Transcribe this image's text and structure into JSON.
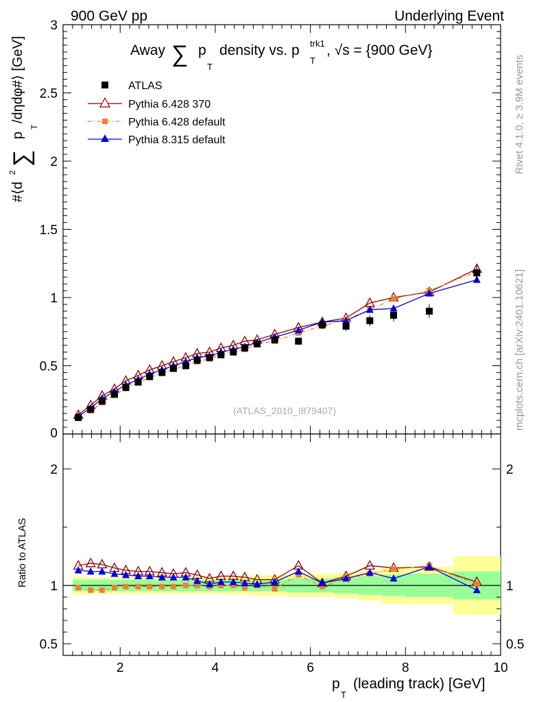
{
  "header": {
    "left": "900 GeV pp",
    "right": "Underlying Event",
    "side_top": "Rivet 4.1.0, ≥ 3.9M events",
    "side_bottom": "mcplots.cern.ch [arXiv:2401.10621]",
    "analysis": "(ATLAS_2010_I879407)"
  },
  "title_parts": {
    "prefix": "Away",
    "sum": "∑",
    "p": "p",
    "p_sub": "T",
    "mid": "density vs. p",
    "p2_sup": "trk1",
    "p2_sub": "T",
    "tail": ", √s = {900 GeV}"
  },
  "ylabel_parts": {
    "pre": "#⟨d",
    "sup2": "2",
    "sum": "∑",
    "p": "p",
    "p_sub": "T",
    "post": "/dηdφ#⟩ [GeV]"
  },
  "xlabel_parts": {
    "p": "p",
    "p_sub": "T",
    "rest": "(leading track) [GeV]"
  },
  "ratio_ylabel": "Ratio to ATLAS",
  "legend": [
    {
      "label": "ATLAS",
      "color": "#000000",
      "marker": "square",
      "line": "none"
    },
    {
      "label": "Pythia 6.428 370",
      "color": "#8b0000",
      "marker": "open-triangle",
      "line": "solid"
    },
    {
      "label": "Pythia 6.428 default",
      "color": "#f08030",
      "marker": "square",
      "line": "dashdot"
    },
    {
      "label": "Pythia 8.315 default",
      "color": "#0000e0",
      "marker": "triangle",
      "line": "solid"
    }
  ],
  "chart_data": {
    "type": "line",
    "title": "Away ∑ pT density vs. pT trk1, √s = {900 GeV}",
    "xlabel": "pT (leading track) [GeV]",
    "ylabel": "#⟨d2 ∑ pT /dηdφ#⟩ [GeV]",
    "xlim": [
      0.8,
      10
    ],
    "ylim": [
      0,
      3
    ],
    "x_ticks": [
      2,
      4,
      6,
      8,
      10
    ],
    "y_ticks": [
      0.5,
      1,
      1.5,
      2,
      2.5,
      3
    ],
    "y_tick_labels": [
      "0.5",
      "1",
      "1.5",
      "2",
      "2.5",
      "3"
    ],
    "y_zero_label": "0",
    "ratio_ylim": [
      0.4,
      2.3
    ],
    "ratio_y_ticks": [
      0.5,
      1,
      2
    ],
    "ratio_y_tick_labels": [
      "0.5",
      "1",
      "2"
    ],
    "x_bins": [
      [
        1.0,
        1.25
      ],
      [
        1.25,
        1.5
      ],
      [
        1.5,
        1.75
      ],
      [
        1.75,
        2.0
      ],
      [
        2.0,
        2.25
      ],
      [
        2.25,
        2.5
      ],
      [
        2.5,
        2.75
      ],
      [
        2.75,
        3.0
      ],
      [
        3.0,
        3.25
      ],
      [
        3.25,
        3.5
      ],
      [
        3.5,
        3.75
      ],
      [
        3.75,
        4.0
      ],
      [
        4.0,
        4.25
      ],
      [
        4.25,
        4.5
      ],
      [
        4.5,
        4.75
      ],
      [
        4.75,
        5.0
      ],
      [
        5.0,
        5.5
      ],
      [
        5.5,
        6.0
      ],
      [
        6.0,
        6.5
      ],
      [
        6.5,
        7.0
      ],
      [
        7.0,
        7.5
      ],
      [
        7.5,
        8.0
      ],
      [
        8.0,
        9.0
      ],
      [
        9.0,
        10.0
      ]
    ],
    "x": [
      1.12,
      1.38,
      1.62,
      1.88,
      2.12,
      2.38,
      2.62,
      2.88,
      3.12,
      3.38,
      3.62,
      3.88,
      4.12,
      4.38,
      4.62,
      4.88,
      5.25,
      5.75,
      6.25,
      6.75,
      7.25,
      7.75,
      8.5,
      9.5
    ],
    "series": [
      {
        "name": "ATLAS",
        "values": [
          0.12,
          0.18,
          0.24,
          0.29,
          0.34,
          0.38,
          0.42,
          0.45,
          0.48,
          0.5,
          0.54,
          0.56,
          0.58,
          0.6,
          0.63,
          0.66,
          0.69,
          0.68,
          0.8,
          0.79,
          0.83,
          0.87,
          0.9,
          1.18
        ],
        "errors": [
          0.004,
          0.005,
          0.006,
          0.007,
          0.008,
          0.009,
          0.01,
          0.01,
          0.011,
          0.012,
          0.013,
          0.014,
          0.015,
          0.016,
          0.018,
          0.02,
          0.022,
          0.025,
          0.03,
          0.035,
          0.04,
          0.045,
          0.05,
          0.06
        ]
      },
      {
        "name": "Pythia 6.428 370",
        "values": [
          0.14,
          0.21,
          0.28,
          0.33,
          0.39,
          0.43,
          0.47,
          0.5,
          0.53,
          0.56,
          0.59,
          0.6,
          0.63,
          0.65,
          0.68,
          0.69,
          0.73,
          0.78,
          0.82,
          0.85,
          0.96,
          1.0,
          1.04,
          1.21
        ]
      },
      {
        "name": "Pythia 6.428 default",
        "values": [
          0.12,
          0.17,
          0.23,
          0.285,
          0.335,
          0.375,
          0.415,
          0.445,
          0.475,
          0.5,
          0.53,
          0.55,
          0.58,
          0.6,
          0.62,
          0.66,
          0.68,
          0.74,
          0.79,
          0.84,
          0.91,
          0.99,
          1.05,
          1.19
        ]
      },
      {
        "name": "Pythia 8.315 default",
        "values": [
          0.13,
          0.19,
          0.26,
          0.31,
          0.36,
          0.4,
          0.44,
          0.47,
          0.5,
          0.53,
          0.56,
          0.57,
          0.6,
          0.62,
          0.64,
          0.67,
          0.71,
          0.76,
          0.82,
          0.83,
          0.91,
          0.92,
          1.03,
          1.13
        ]
      }
    ],
    "ratio": {
      "band_inner": [
        0.05,
        0.05,
        0.05,
        0.05,
        0.05,
        0.05,
        0.05,
        0.05,
        0.05,
        0.05,
        0.05,
        0.05,
        0.05,
        0.05,
        0.05,
        0.05,
        0.05,
        0.06,
        0.06,
        0.07,
        0.08,
        0.09,
        0.1,
        0.12
      ],
      "band_outer": [
        0.08,
        0.07,
        0.07,
        0.07,
        0.07,
        0.07,
        0.07,
        0.07,
        0.07,
        0.07,
        0.07,
        0.07,
        0.07,
        0.08,
        0.08,
        0.09,
        0.09,
        0.1,
        0.1,
        0.11,
        0.13,
        0.16,
        0.16,
        0.25
      ],
      "series": [
        {
          "name": "Pythia 6.428 370",
          "values": [
            1.17,
            1.19,
            1.18,
            1.15,
            1.13,
            1.12,
            1.12,
            1.11,
            1.1,
            1.11,
            1.09,
            1.06,
            1.08,
            1.08,
            1.07,
            1.05,
            1.05,
            1.17,
            1.02,
            1.08,
            1.17,
            1.15,
            1.16,
            1.03
          ]
        },
        {
          "name": "Pythia 6.428 default",
          "values": [
            0.98,
            0.96,
            0.96,
            0.98,
            0.99,
            0.99,
            0.99,
            0.99,
            0.99,
            1.0,
            1.0,
            0.99,
            1.0,
            1.0,
            0.98,
            1.0,
            0.97,
            1.09,
            0.99,
            1.06,
            1.1,
            1.14,
            1.17,
            1.01
          ]
        },
        {
          "name": "Pythia 8.315 default",
          "values": [
            1.13,
            1.12,
            1.12,
            1.1,
            1.09,
            1.08,
            1.08,
            1.07,
            1.07,
            1.07,
            1.04,
            1.01,
            1.03,
            1.03,
            1.02,
            1.01,
            1.03,
            1.12,
            1.02,
            1.06,
            1.11,
            1.06,
            1.16,
            0.96
          ]
        }
      ]
    }
  }
}
